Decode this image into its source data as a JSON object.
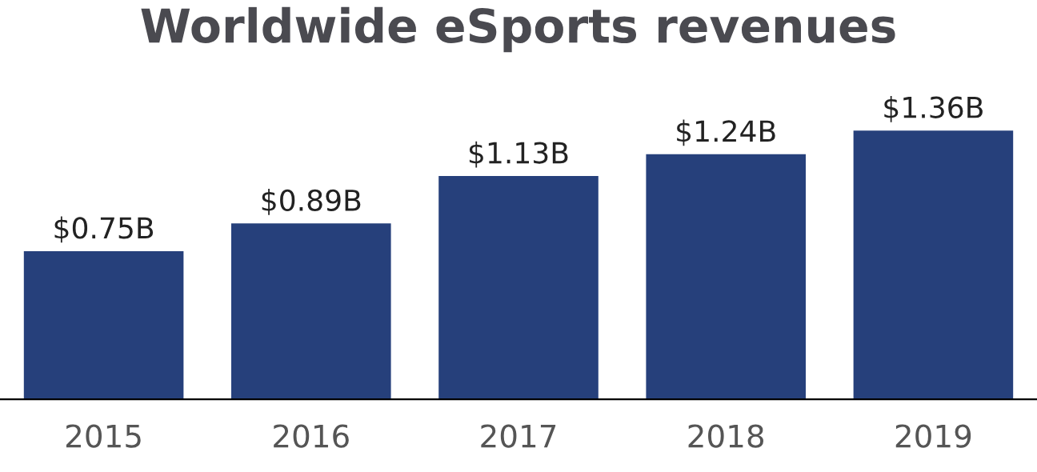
{
  "chart_data": {
    "type": "bar",
    "title": "Worldwide eSports revenues",
    "categories": [
      "2015",
      "2016",
      "2017",
      "2018",
      "2019"
    ],
    "values": [
      0.75,
      0.89,
      1.13,
      1.24,
      1.36
    ],
    "value_labels": [
      "$0.75B",
      "$0.89B",
      "$1.13B",
      "$1.24B",
      "$1.36B"
    ],
    "color": "#26407b",
    "tick_labels": "x",
    "grid": false,
    "legend": false
  }
}
